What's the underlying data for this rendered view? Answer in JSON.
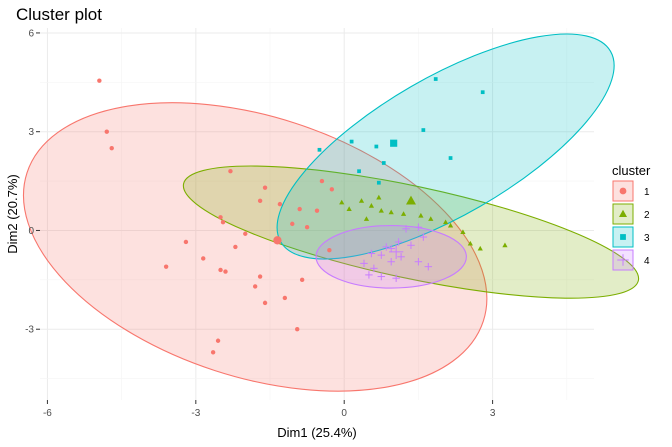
{
  "chart_data": {
    "type": "scatter",
    "title": "Cluster plot",
    "xlabel": "Dim1 (25.4%)",
    "ylabel": "Dim2 (20.7%)",
    "xlim": [
      -6.15,
      5.05
    ],
    "ylim": [
      -5.15,
      6.15
    ],
    "x_ticks": [
      -6,
      -3,
      0,
      3
    ],
    "y_ticks": [
      -3,
      0,
      3,
      6
    ],
    "x_tick_labels": [
      "-6",
      "-3",
      "0",
      "3"
    ],
    "y_tick_labels": [
      "-3",
      "0",
      "3",
      "6"
    ],
    "grid": true,
    "legend_title": "cluster",
    "legend_position": "right",
    "clusters": [
      {
        "name": "1",
        "shape": "circle",
        "color": "#F8766D",
        "center": [
          -1.35,
          -0.3
        ],
        "ellipse": {
          "cx": -1.8,
          "cy": -0.5,
          "rx": 4.85,
          "ry": 3.95,
          "angle_deg": -18
        },
        "points": [
          [
            -4.95,
            4.55
          ],
          [
            -4.8,
            3.0
          ],
          [
            -4.7,
            2.5
          ],
          [
            -2.3,
            1.8
          ],
          [
            -1.6,
            1.3
          ],
          [
            -0.45,
            1.5
          ],
          [
            -0.25,
            1.25
          ],
          [
            -2.5,
            0.4
          ],
          [
            -1.7,
            0.9
          ],
          [
            -1.3,
            0.8
          ],
          [
            -0.9,
            0.65
          ],
          [
            -0.55,
            0.6
          ],
          [
            -1.05,
            0.2
          ],
          [
            -2.45,
            0.25
          ],
          [
            -0.75,
            0.1
          ],
          [
            -2.0,
            -0.1
          ],
          [
            -0.3,
            -0.6
          ],
          [
            -2.2,
            -0.5
          ],
          [
            -3.6,
            -1.1
          ],
          [
            -2.85,
            -0.85
          ],
          [
            -2.5,
            -1.2
          ],
          [
            -2.4,
            -1.25
          ],
          [
            -1.7,
            -1.4
          ],
          [
            -1.8,
            -1.7
          ],
          [
            -1.6,
            -2.2
          ],
          [
            -1.2,
            -2.05
          ],
          [
            -0.85,
            -1.5
          ],
          [
            -0.95,
            -3.0
          ],
          [
            -2.55,
            -3.35
          ],
          [
            -2.65,
            -3.7
          ],
          [
            -3.2,
            -0.35
          ]
        ]
      },
      {
        "name": "2",
        "shape": "triangle",
        "color": "#7CAE00",
        "center": [
          1.35,
          0.9
        ],
        "ellipse": {
          "cx": 1.35,
          "cy": -0.05,
          "rx": 4.7,
          "ry": 1.4,
          "angle_deg": -12
        },
        "points": [
          [
            -0.05,
            0.85
          ],
          [
            0.1,
            0.65
          ],
          [
            0.35,
            0.9
          ],
          [
            0.55,
            0.75
          ],
          [
            0.75,
            0.6
          ],
          [
            0.45,
            0.35
          ],
          [
            0.95,
            0.55
          ],
          [
            1.55,
            0.45
          ],
          [
            1.75,
            0.35
          ],
          [
            2.05,
            0.25
          ],
          [
            2.15,
            0.15
          ],
          [
            2.4,
            -0.05
          ],
          [
            2.55,
            -0.4
          ],
          [
            2.75,
            -0.55
          ],
          [
            3.25,
            -0.45
          ],
          [
            0.7,
            1.0
          ],
          [
            1.2,
            0.5
          ]
        ]
      },
      {
        "name": "3",
        "shape": "square",
        "color": "#00BFC4",
        "center": [
          1.0,
          2.65
        ],
        "ellipse": {
          "cx": 2.05,
          "cy": 2.55,
          "rx": 3.85,
          "ry": 2.1,
          "angle_deg": 30
        },
        "points": [
          [
            1.85,
            4.6
          ],
          [
            2.8,
            4.2
          ],
          [
            1.6,
            3.05
          ],
          [
            0.15,
            2.7
          ],
          [
            -0.5,
            2.45
          ],
          [
            0.65,
            2.55
          ],
          [
            2.15,
            2.2
          ],
          [
            0.8,
            2.05
          ],
          [
            0.7,
            1.45
          ],
          [
            0.3,
            1.8
          ]
        ]
      },
      {
        "name": "4",
        "shape": "plus",
        "color": "#C77CFF",
        "center": [
          1.05,
          -0.65
        ],
        "ellipse": {
          "cx": 0.95,
          "cy": -0.8,
          "rx": 1.52,
          "ry": 0.95,
          "angle_deg": 0
        },
        "points": [
          [
            1.25,
            0.05
          ],
          [
            1.5,
            0.1
          ],
          [
            1.6,
            -0.2
          ],
          [
            1.35,
            -0.45
          ],
          [
            1.1,
            -0.35
          ],
          [
            0.85,
            -0.5
          ],
          [
            0.55,
            -0.7
          ],
          [
            0.75,
            -0.75
          ],
          [
            0.95,
            -0.95
          ],
          [
            1.15,
            -0.8
          ],
          [
            1.5,
            -0.95
          ],
          [
            1.7,
            -1.1
          ],
          [
            0.4,
            -1.0
          ],
          [
            0.6,
            -1.15
          ],
          [
            0.5,
            -1.35
          ],
          [
            0.75,
            -1.4
          ],
          [
            1.05,
            -1.45
          ],
          [
            0.95,
            -0.55
          ]
        ]
      }
    ]
  }
}
